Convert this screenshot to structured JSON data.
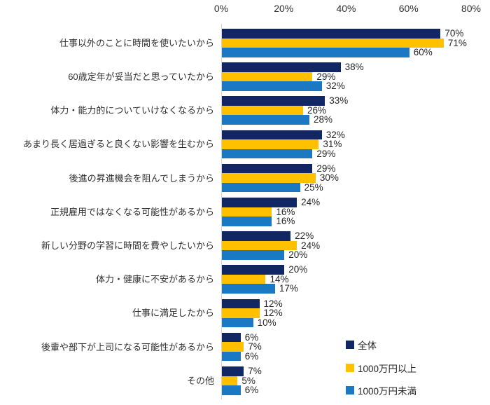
{
  "chart_data": {
    "type": "bar",
    "orientation": "horizontal",
    "title": "",
    "value_suffix": "%",
    "x_axis": {
      "position": "top",
      "min": 0,
      "max": 80,
      "ticks": [
        "0%",
        "20%",
        "40%",
        "60%",
        "80%"
      ],
      "tick_values": [
        0,
        20,
        40,
        60,
        80
      ]
    },
    "grid": "off",
    "legend_position": "bottom-right",
    "categories": [
      "仕事以外のことに時間を使いたいから",
      "60歳定年が妥当だと思っていたから",
      "体力・能力的についていけなくなるから",
      "あまり長く居過ぎると良くない影響を生むから",
      "後進の昇進機会を阻んでしまうから",
      "正規雇用ではなくなる可能性があるから",
      "新しい分野の学習に時間を費やしたいから",
      "体力・健康に不安があるから",
      "仕事に満足したから",
      "後輩や部下が上司になる可能性があるから",
      "その他"
    ],
    "series": [
      {
        "name": "全体",
        "color": "#112664",
        "values": [
          70,
          38,
          33,
          32,
          29,
          24,
          22,
          20,
          12,
          6,
          7
        ]
      },
      {
        "name": "1000万円以上",
        "color": "#FFC000",
        "values": [
          71,
          29,
          26,
          31,
          30,
          16,
          24,
          14,
          12,
          7,
          5
        ]
      },
      {
        "name": "1000万円未満",
        "color": "#1B79C4",
        "values": [
          60,
          32,
          28,
          29,
          25,
          16,
          20,
          17,
          10,
          6,
          6
        ]
      }
    ],
    "colors": {
      "axis_line": "#d6d6d6",
      "text": "#262626"
    }
  }
}
